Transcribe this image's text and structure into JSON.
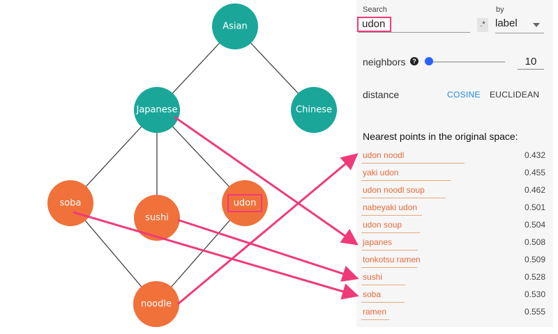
{
  "graph": {
    "nodes": [
      {
        "id": "asian",
        "label": "Asian",
        "color": "#1aa79a"
      },
      {
        "id": "japanese",
        "label": "Japanese",
        "color": "#1aa79a"
      },
      {
        "id": "chinese",
        "label": "Chinese",
        "color": "#1aa79a"
      },
      {
        "id": "soba",
        "label": "soba",
        "color": "#f0713a"
      },
      {
        "id": "sushi",
        "label": "sushi",
        "color": "#f0713a"
      },
      {
        "id": "udon",
        "label": "udon",
        "color": "#f0713a"
      },
      {
        "id": "noodle",
        "label": "noodle",
        "color": "#f0713a"
      }
    ],
    "edges": [
      [
        "asian",
        "japanese"
      ],
      [
        "asian",
        "chinese"
      ],
      [
        "japanese",
        "soba"
      ],
      [
        "japanese",
        "sushi"
      ],
      [
        "japanese",
        "udon"
      ],
      [
        "soba",
        "noodle"
      ],
      [
        "udon",
        "noodle"
      ]
    ],
    "highlight_color": "#ef3a7a",
    "highlighted_node": "udon"
  },
  "panel": {
    "search_label": "Search",
    "search_value": "udon",
    "regex_button": ".*",
    "by_label": "by",
    "by_value": "label",
    "neighbors_label": "neighbors",
    "help_icon": "?",
    "neighbors_value": "10",
    "distance_label": "distance",
    "distance_cosine": "COSINE",
    "distance_euclidean": "EUCLIDEAN",
    "nn_title": "Nearest points in the original space:",
    "neighbors": [
      {
        "name": "udon noodl",
        "value": "0.432"
      },
      {
        "name": "yaki udon",
        "value": "0.455"
      },
      {
        "name": "udon noodl soup",
        "value": "0.462"
      },
      {
        "name": "nabeyaki udon",
        "value": "0.501"
      },
      {
        "name": "udon soup",
        "value": "0.504"
      },
      {
        "name": "japanes",
        "value": "0.508"
      },
      {
        "name": "tonkotsu ramen",
        "value": "0.509"
      },
      {
        "name": "sushi",
        "value": "0.528"
      },
      {
        "name": "soba",
        "value": "0.530"
      },
      {
        "name": "ramen",
        "value": "0.555"
      }
    ]
  },
  "arrows": [
    {
      "from": "japanese",
      "to": "japanes"
    },
    {
      "from": "soba",
      "to": "soba"
    },
    {
      "from": "sushi",
      "to": "sushi"
    },
    {
      "from": "noodle",
      "to": "udon noodl"
    }
  ]
}
